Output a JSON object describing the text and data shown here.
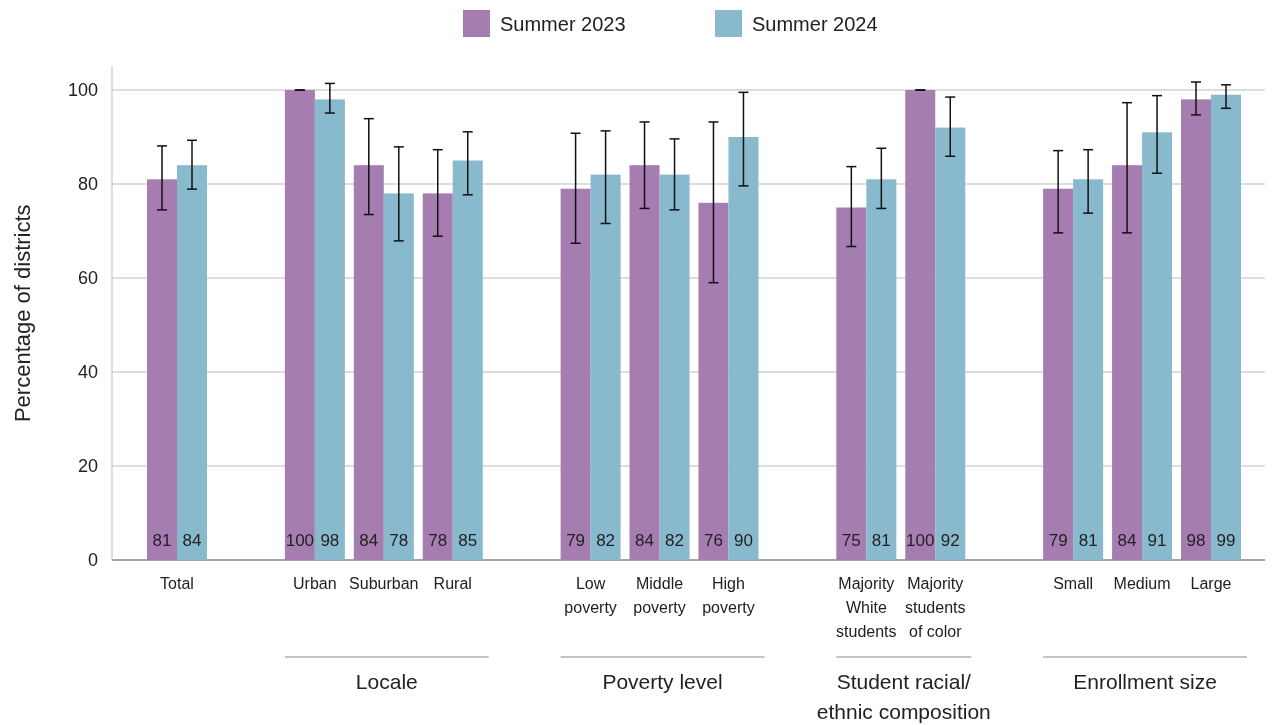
{
  "chart_data": {
    "type": "bar",
    "ylabel": "Percentage of districts",
    "categories": [
      "Total",
      null,
      "Urban",
      "Suburban",
      "Rural",
      null,
      "Low poverty",
      "Middle poverty",
      "High poverty",
      null,
      "Majority White students",
      "Majority students of color",
      null,
      "Small",
      "Medium",
      "Large"
    ],
    "series": [
      {
        "name": "Summer 2023",
        "color": "#a67db1",
        "values": [
          81,
          null,
          100,
          84,
          78,
          null,
          79,
          84,
          76,
          null,
          75,
          100,
          null,
          79,
          84,
          98
        ],
        "errors": [
          [
            74.5,
            88.1
          ],
          null,
          [
            100,
            100
          ],
          [
            73.5,
            93.9
          ],
          [
            68.9,
            87.3
          ],
          null,
          [
            67.4,
            90.8
          ],
          [
            74.8,
            93.2
          ],
          [
            59.0,
            93.2
          ],
          null,
          [
            66.7,
            83.7
          ],
          [
            100,
            100
          ],
          null,
          [
            69.6,
            87.1
          ],
          [
            69.6,
            97.3
          ],
          [
            94.7,
            101.7
          ]
        ]
      },
      {
        "name": "Summer 2024",
        "color": "#88b9cc",
        "values": [
          84,
          null,
          98,
          78,
          85,
          null,
          82,
          82,
          90,
          null,
          81,
          92,
          null,
          81,
          91,
          99
        ],
        "errors": [
          [
            78.9,
            89.3
          ],
          null,
          [
            95.1,
            101.4
          ],
          [
            67.9,
            87.9
          ],
          [
            77.7,
            91.1
          ],
          null,
          [
            71.6,
            91.3
          ],
          [
            74.5,
            89.6
          ],
          [
            79.6,
            99.5
          ],
          null,
          [
            74.8,
            87.6
          ],
          [
            85.9,
            98.5
          ],
          null,
          [
            73.8,
            87.3
          ],
          [
            82.3,
            98.8
          ],
          [
            96.1,
            101.1
          ]
        ]
      }
    ],
    "ylim": [
      0,
      105
    ],
    "yticks": [
      0,
      20,
      40,
      60,
      80,
      100
    ],
    "grid": "y",
    "legend": "top",
    "data_labels": true,
    "annotations": [
      "Locale",
      "Poverty level",
      "Student racial/ ethnic composition",
      "Enrollment size"
    ]
  }
}
